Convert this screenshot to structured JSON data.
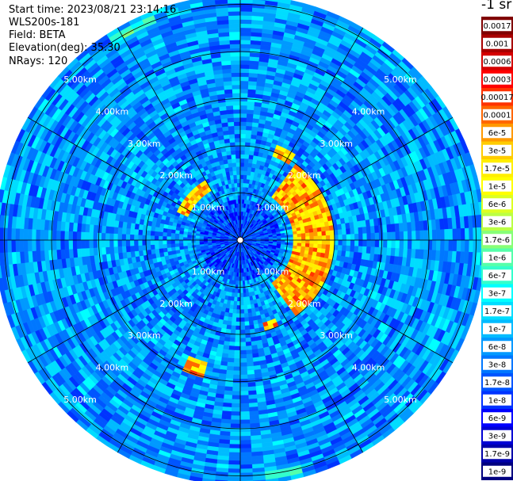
{
  "header": {
    "start_time": "Start time: 2023/08/21 23:14:16",
    "instrument": "WLS200s-181",
    "field": "Field: BETA",
    "elevation": "Elevation(deg): 35.30",
    "nrays": "NRays: 120"
  },
  "colorbar": {
    "unit": "-1 sr",
    "labels": [
      "0.0017",
      "0.001",
      "0.0006",
      "0.0003",
      "0.00017",
      "0.0001",
      "6e-5",
      "3e-5",
      "1.7e-5",
      "1e-5",
      "6e-6",
      "3e-6",
      "1.7e-6",
      "1e-6",
      "6e-7",
      "3e-7",
      "1.7e-7",
      "1e-7",
      "6e-8",
      "3e-8",
      "1.7e-8",
      "1e-8",
      "6e-9",
      "3e-9",
      "1.7e-9",
      "1e-9"
    ],
    "colors": [
      "#800000",
      "#a80000",
      "#d40000",
      "#ff0000",
      "#ff3300",
      "#ff6600",
      "#ff9900",
      "#ffcc00",
      "#ffee00",
      "#ffff00",
      "#ddff22",
      "#bbff44",
      "#88ff77",
      "#55ffaa",
      "#33ffcc",
      "#00ffff",
      "#00ddff",
      "#00bbff",
      "#0099ff",
      "#0077ff",
      "#0055ff",
      "#0033ff",
      "#0000ff",
      "#0000d4",
      "#0000aa",
      "#000080"
    ]
  },
  "chart_data": {
    "type": "heatmap",
    "projection": "polar PPI",
    "rings_km": [
      1,
      2,
      3,
      4,
      5
    ],
    "ring_labels": [
      "1.00km",
      "2.00km",
      "3.00km",
      "4.00km",
      "5.00km"
    ],
    "max_range_km": 5.2,
    "spokes_deg": [
      0,
      30,
      60,
      90,
      120,
      150,
      180,
      210,
      240,
      270,
      300,
      330
    ],
    "n_rays": 120,
    "background_level": "1e-8 to 6e-8",
    "features": [
      {
        "name": "strong echo arc east",
        "azimuth_deg": [
          35,
          145
        ],
        "range_km": [
          1.1,
          2.0
        ],
        "level": "3e-5 to 1e-4"
      },
      {
        "name": "patch northwest",
        "azimuth_deg": [
          295,
          330
        ],
        "range_km": [
          1.2,
          1.5
        ],
        "level": "3e-5 to 1e-4"
      },
      {
        "name": "patch north-northeast",
        "azimuth_deg": [
          20,
          32
        ],
        "range_km": [
          1.9,
          2.2
        ],
        "level": "3e-5 to 1e-4"
      },
      {
        "name": "patch south-southwest",
        "azimuth_deg": [
          195,
          205
        ],
        "range_km": [
          2.7,
          3.0
        ],
        "level": "3e-5 to 1e-4"
      },
      {
        "name": "patch south-southeast",
        "azimuth_deg": [
          155,
          165
        ],
        "range_km": [
          1.8,
          2.0
        ],
        "level": "3e-5 to 1e-4"
      },
      {
        "name": "weak arc far north-northwest",
        "azimuth_deg": [
          328,
          340
        ],
        "range_km": [
          4.9,
          5.1
        ],
        "level": "1e-6 to 3e-6"
      },
      {
        "name": "weak arc far south",
        "azimuth_deg": [
          165,
          175
        ],
        "range_km": [
          4.9,
          5.1
        ],
        "level": "1e-6 to 3e-6"
      }
    ]
  }
}
